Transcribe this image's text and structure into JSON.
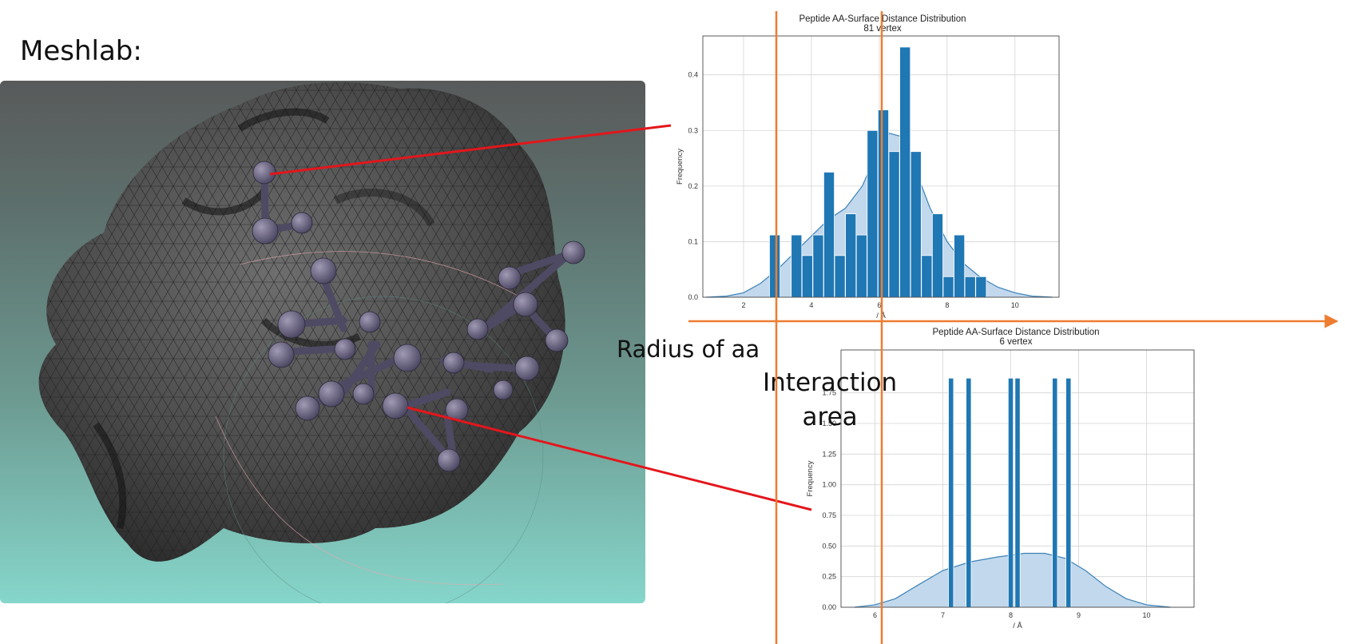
{
  "slide": {
    "title": "Meshlab:",
    "annotation_radius": "Radius of aa",
    "annotation_interaction_line1": "Interaction",
    "annotation_interaction_line2": "area"
  },
  "colors": {
    "bar": "#1f77b4",
    "kde_fill": "#c2d8ec",
    "kde_line": "#3b82b8",
    "marker_line": "#ed7d31",
    "connector_line": "#e3161b",
    "grid": "#d4d4d4"
  },
  "chart_data": [
    {
      "type": "bar",
      "title": "Peptide AA-Surface Distance Distribution",
      "subtitle": "81 vertex",
      "xlabel": "/ Å",
      "ylabel": "Frequency",
      "xlim": [
        0.8,
        11.3
      ],
      "ylim": [
        0,
        0.47
      ],
      "xticks": [
        2,
        4,
        6,
        8,
        10
      ],
      "yticks": [
        0.0,
        0.1,
        0.2,
        0.3,
        0.4
      ],
      "ytick_labels": [
        "0.0",
        "0.1",
        "0.2",
        "0.3",
        "0.4"
      ],
      "bar_width": 0.31,
      "bars": [
        {
          "x": 2.92,
          "value": 0.112
        },
        {
          "x": 3.24,
          "value": 0.0
        },
        {
          "x": 3.56,
          "value": 0.112
        },
        {
          "x": 3.88,
          "value": 0.075
        },
        {
          "x": 4.2,
          "value": 0.112
        },
        {
          "x": 4.52,
          "value": 0.225
        },
        {
          "x": 4.84,
          "value": 0.075
        },
        {
          "x": 5.16,
          "value": 0.15
        },
        {
          "x": 5.48,
          "value": 0.112
        },
        {
          "x": 5.8,
          "value": 0.3
        },
        {
          "x": 6.12,
          "value": 0.337
        },
        {
          "x": 6.44,
          "value": 0.262
        },
        {
          "x": 6.76,
          "value": 0.45
        },
        {
          "x": 7.08,
          "value": 0.262
        },
        {
          "x": 7.4,
          "value": 0.075
        },
        {
          "x": 7.72,
          "value": 0.15
        },
        {
          "x": 8.04,
          "value": 0.037
        },
        {
          "x": 8.36,
          "value": 0.112
        },
        {
          "x": 8.68,
          "value": 0.037
        },
        {
          "x": 9.0,
          "value": 0.037
        }
      ],
      "kde": {
        "x": [
          0.9,
          1.5,
          2.0,
          2.5,
          3.0,
          3.5,
          4.0,
          4.5,
          5.0,
          5.5,
          6.0,
          6.3,
          6.6,
          7.0,
          7.5,
          8.0,
          8.5,
          9.0,
          9.5,
          10.0,
          10.5,
          11.1
        ],
        "y": [
          0.0,
          0.002,
          0.008,
          0.025,
          0.05,
          0.08,
          0.11,
          0.14,
          0.16,
          0.2,
          0.27,
          0.295,
          0.29,
          0.24,
          0.16,
          0.1,
          0.06,
          0.035,
          0.018,
          0.008,
          0.002,
          0.0
        ]
      }
    },
    {
      "type": "bar",
      "title": "Peptide AA-Surface Distance Distribution",
      "subtitle": "6 vertex",
      "xlabel": "/ Å",
      "ylabel": "Frequency",
      "xlim": [
        5.5,
        10.7
      ],
      "ylim": [
        0,
        2.1
      ],
      "xticks": [
        6,
        7,
        8,
        9,
        10
      ],
      "yticks": [
        0.0,
        0.25,
        0.5,
        0.75,
        1.0,
        1.25,
        1.5,
        1.75
      ],
      "ytick_labels": [
        "0.00",
        "0.25",
        "0.50",
        "0.75",
        "1.00",
        "1.25",
        "1.50",
        "1.75"
      ],
      "bar_width": 0.075,
      "bars": [
        {
          "x": 7.12,
          "value": 1.87
        },
        {
          "x": 7.38,
          "value": 1.87
        },
        {
          "x": 8.0,
          "value": 1.87
        },
        {
          "x": 8.1,
          "value": 1.87
        },
        {
          "x": 8.65,
          "value": 1.87
        },
        {
          "x": 8.85,
          "value": 1.87
        }
      ],
      "kde": {
        "x": [
          5.7,
          6.0,
          6.3,
          6.6,
          7.0,
          7.4,
          7.8,
          8.2,
          8.5,
          8.8,
          9.1,
          9.4,
          9.7,
          10.0,
          10.35
        ],
        "y": [
          0.0,
          0.02,
          0.07,
          0.17,
          0.3,
          0.37,
          0.41,
          0.44,
          0.44,
          0.4,
          0.3,
          0.17,
          0.07,
          0.02,
          0.0
        ]
      }
    }
  ]
}
